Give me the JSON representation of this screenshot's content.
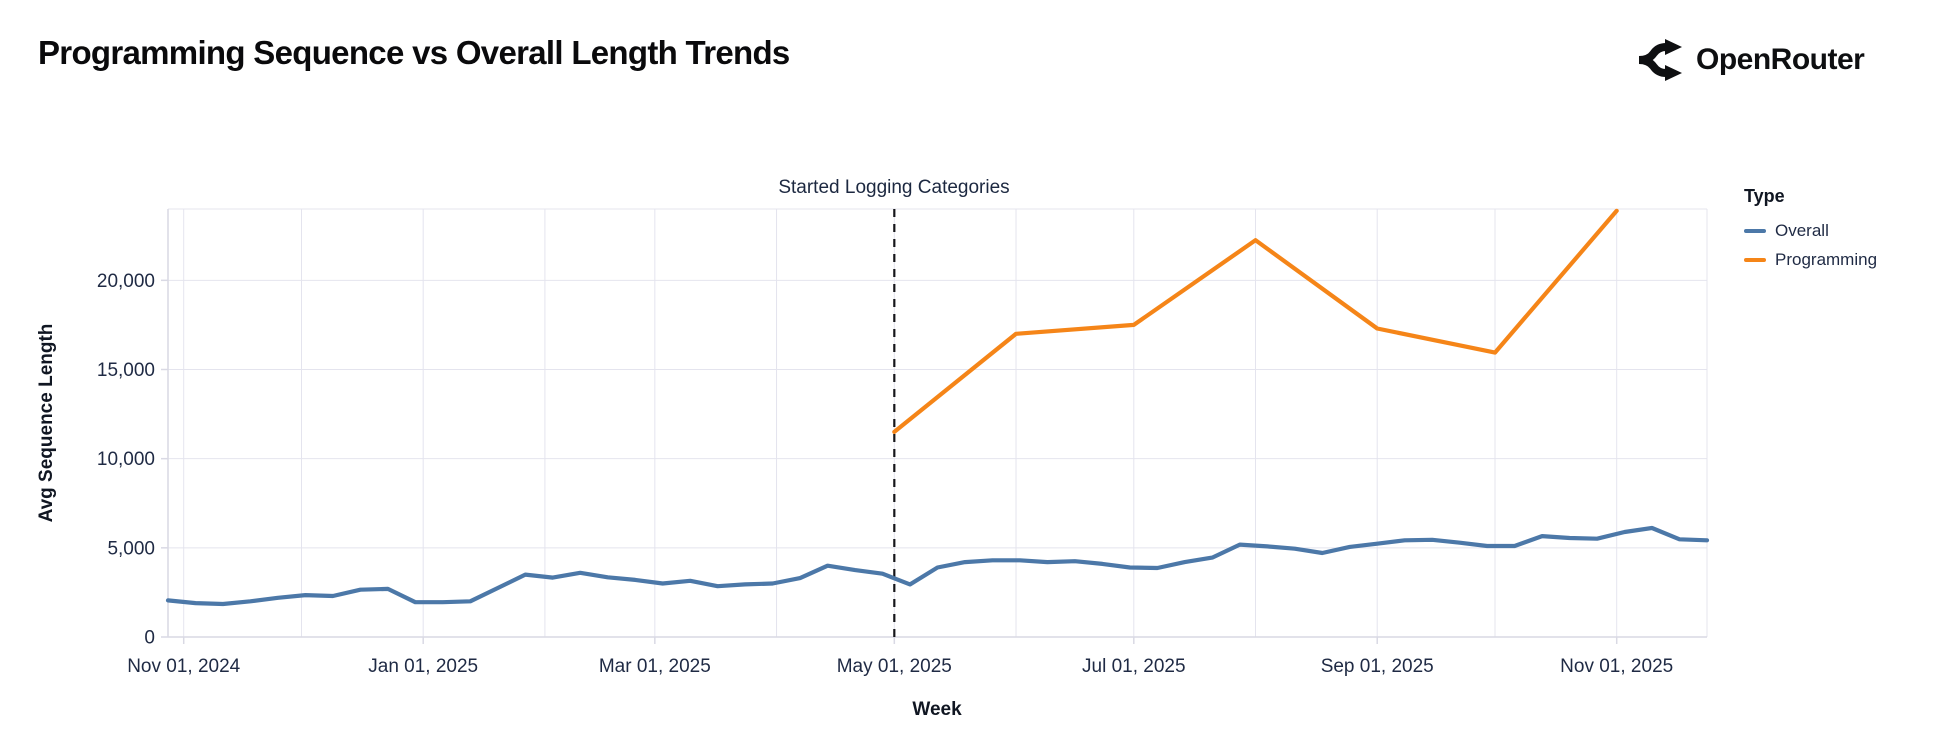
{
  "header": {
    "title": "Programming Sequence vs Overall Length Trends",
    "brand": "OpenRouter"
  },
  "colors": {
    "overall": "#4c78a8",
    "programming": "#f58518",
    "grid": "#e4e4ee",
    "axis": "#d9d9e4",
    "tick_text": "#1f2a44",
    "annotation_line": "#16161a"
  },
  "chart_data": {
    "type": "line",
    "title": "Programming Sequence vs Overall Length Trends",
    "xlabel": "Week",
    "ylabel": "Avg Sequence Length",
    "annotation": {
      "text": "Started Logging Categories",
      "date": "2025-05-01"
    },
    "x_domain": [
      "2024-10-28",
      "2025-11-24"
    ],
    "ylim": [
      0,
      24000
    ],
    "y_ticks": [
      0,
      5000,
      10000,
      15000,
      20000
    ],
    "x_grid": [
      "2024-11-01",
      "2024-12-01",
      "2025-01-01",
      "2025-02-01",
      "2025-03-01",
      "2025-04-01",
      "2025-05-01",
      "2025-06-01",
      "2025-07-01",
      "2025-08-01",
      "2025-09-01",
      "2025-10-01",
      "2025-11-01"
    ],
    "x_ticks": [
      {
        "date": "2024-11-01",
        "label": "Nov 01, 2024"
      },
      {
        "date": "2025-01-01",
        "label": "Jan 01, 2025"
      },
      {
        "date": "2025-03-01",
        "label": "Mar 01, 2025"
      },
      {
        "date": "2025-05-01",
        "label": "May 01, 2025"
      },
      {
        "date": "2025-07-01",
        "label": "Jul 01, 2025"
      },
      {
        "date": "2025-09-01",
        "label": "Sep 01, 2025"
      },
      {
        "date": "2025-11-01",
        "label": "Nov 01, 2025"
      }
    ],
    "legend": {
      "title": "Type",
      "entries": [
        {
          "label": "Overall",
          "color": "#4c78a8"
        },
        {
          "label": "Programming",
          "color": "#f58518"
        }
      ]
    },
    "series": [
      {
        "name": "Overall",
        "color": "#4c78a8",
        "points": [
          [
            "2024-10-28",
            2050
          ],
          [
            "2024-11-04",
            1900
          ],
          [
            "2024-11-11",
            1850
          ],
          [
            "2024-11-18",
            2000
          ],
          [
            "2024-11-25",
            2200
          ],
          [
            "2024-12-02",
            2350
          ],
          [
            "2024-12-09",
            2300
          ],
          [
            "2024-12-16",
            2650
          ],
          [
            "2024-12-23",
            2700
          ],
          [
            "2024-12-30",
            1950
          ],
          [
            "2025-01-06",
            1950
          ],
          [
            "2025-01-13",
            2000
          ],
          [
            "2025-01-20",
            2750
          ],
          [
            "2025-01-27",
            3500
          ],
          [
            "2025-02-03",
            3330
          ],
          [
            "2025-02-10",
            3600
          ],
          [
            "2025-02-17",
            3350
          ],
          [
            "2025-02-24",
            3200
          ],
          [
            "2025-03-03",
            3000
          ],
          [
            "2025-03-10",
            3150
          ],
          [
            "2025-03-17",
            2850
          ],
          [
            "2025-03-24",
            2950
          ],
          [
            "2025-03-31",
            3000
          ],
          [
            "2025-04-07",
            3300
          ],
          [
            "2025-04-14",
            4000
          ],
          [
            "2025-04-21",
            3750
          ],
          [
            "2025-04-28",
            3550
          ],
          [
            "2025-05-05",
            2950
          ],
          [
            "2025-05-12",
            3900
          ],
          [
            "2025-05-19",
            4200
          ],
          [
            "2025-05-26",
            4300
          ],
          [
            "2025-06-02",
            4300
          ],
          [
            "2025-06-09",
            4200
          ],
          [
            "2025-06-16",
            4250
          ],
          [
            "2025-06-23",
            4100
          ],
          [
            "2025-06-30",
            3900
          ],
          [
            "2025-07-07",
            3870
          ],
          [
            "2025-07-14",
            4200
          ],
          [
            "2025-07-21",
            4450
          ],
          [
            "2025-07-28",
            5180
          ],
          [
            "2025-08-04",
            5080
          ],
          [
            "2025-08-11",
            4950
          ],
          [
            "2025-08-18",
            4710
          ],
          [
            "2025-08-25",
            5050
          ],
          [
            "2025-09-01",
            5230
          ],
          [
            "2025-09-08",
            5420
          ],
          [
            "2025-09-15",
            5450
          ],
          [
            "2025-09-22",
            5290
          ],
          [
            "2025-09-29",
            5100
          ],
          [
            "2025-10-06",
            5100
          ],
          [
            "2025-10-13",
            5660
          ],
          [
            "2025-10-20",
            5550
          ],
          [
            "2025-10-27",
            5510
          ],
          [
            "2025-11-03",
            5890
          ],
          [
            "2025-11-10",
            6110
          ],
          [
            "2025-11-17",
            5480
          ],
          [
            "2025-11-24",
            5420
          ]
        ]
      },
      {
        "name": "Programming",
        "color": "#f58518",
        "points": [
          [
            "2025-05-01",
            11500
          ],
          [
            "2025-06-01",
            17000
          ],
          [
            "2025-07-01",
            17500
          ],
          [
            "2025-08-01",
            22250
          ],
          [
            "2025-09-01",
            17300
          ],
          [
            "2025-10-01",
            15950
          ],
          [
            "2025-11-01",
            23900
          ]
        ]
      }
    ]
  }
}
